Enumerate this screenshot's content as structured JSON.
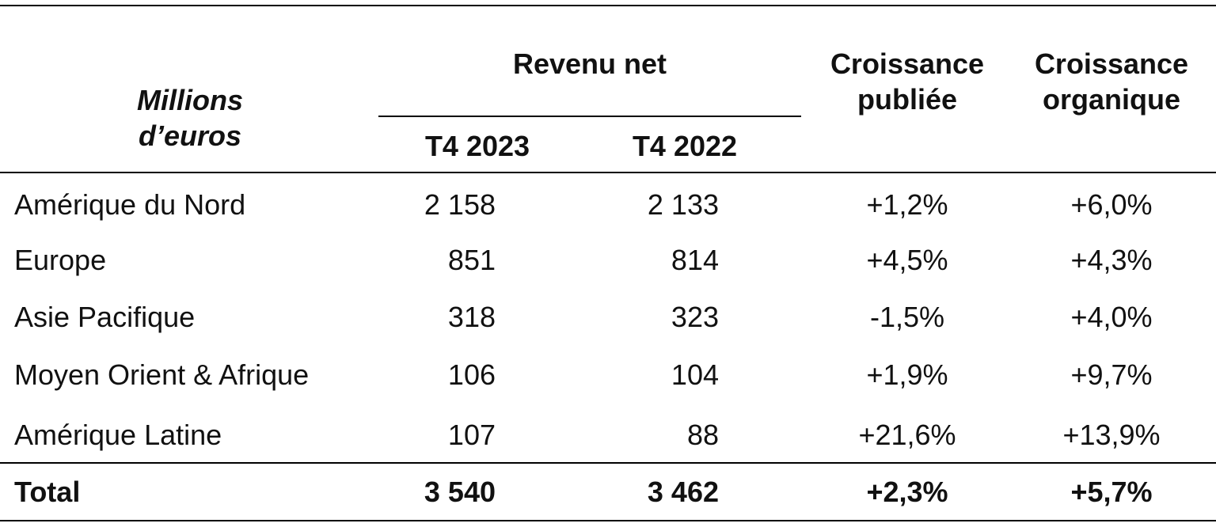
{
  "header": {
    "unit_line1": "Millions",
    "unit_line2": "d’euros",
    "revenue_group": "Revenu net",
    "col_t4_2023": "T4 2023",
    "col_t4_2022": "T4 2022",
    "growth_published_line1": "Croissance",
    "growth_published_line2": "publiée",
    "growth_organic_line1": "Croissance",
    "growth_organic_line2": "organique"
  },
  "rows": [
    {
      "region": "Amérique du Nord",
      "t4_2023": "2 158",
      "t4_2022": "2 133",
      "published": "+1,2%",
      "organic": "+6,0%"
    },
    {
      "region": "Europe",
      "t4_2023": "851",
      "t4_2022": "814",
      "published": "+4,5%",
      "organic": "+4,3%"
    },
    {
      "region": "Asie Pacifique",
      "t4_2023": "318",
      "t4_2022": "323",
      "published": "-1,5%",
      "organic": "+4,0%"
    },
    {
      "region": "Moyen Orient & Afrique",
      "t4_2023": "106",
      "t4_2022": "104",
      "published": "+1,9%",
      "organic": "+9,7%"
    },
    {
      "region": "Amérique Latine",
      "t4_2023": "107",
      "t4_2022": "88",
      "published": "+21,6%",
      "organic": "+13,9%"
    }
  ],
  "total": {
    "region": "Total",
    "t4_2023": "3 540",
    "t4_2022": "3 462",
    "published": "+2,3%",
    "organic": "+5,7%"
  }
}
